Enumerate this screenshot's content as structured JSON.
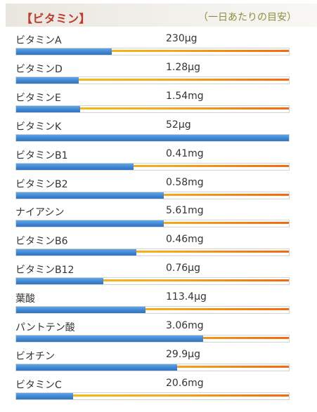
{
  "header": {
    "title": "【ビタミン】",
    "note": "（一日あたりの目安）"
  },
  "items": [
    {
      "label": "ビタミンA",
      "value": "230μg",
      "fill": 0.35
    },
    {
      "label": "ビタミンD",
      "value": "1.28μg",
      "fill": 0.23
    },
    {
      "label": "ビタミンE",
      "value": "1.54mg",
      "fill": 0.235
    },
    {
      "label": "ビタミンK",
      "value": "52μg",
      "fill": 1.0
    },
    {
      "label": "ビタミンB1",
      "value": "0.41mg",
      "fill": 0.43
    },
    {
      "label": "ビタミンB2",
      "value": "0.58mg",
      "fill": 0.54
    },
    {
      "label": "ナイアシン",
      "value": "5.61mg",
      "fill": 0.54
    },
    {
      "label": "ビタミンB6",
      "value": "0.46mg",
      "fill": 0.44
    },
    {
      "label": "ビタミンB12",
      "value": "0.76μg",
      "fill": 0.32
    },
    {
      "label": "葉酸",
      "value": "113.4μg",
      "fill": 0.475
    },
    {
      "label": "パントテン酸",
      "value": "3.06mg",
      "fill": 0.685
    },
    {
      "label": "ビオチン",
      "value": "29.9μg",
      "fill": 0.59
    },
    {
      "label": "ビタミンC",
      "value": "20.6mg",
      "fill": 0.21
    }
  ],
  "colors": {
    "title": "#c0392b",
    "note": "#8a8f3c",
    "bar_fill": "#3f87d3",
    "bar_track": "#f4a91c"
  }
}
